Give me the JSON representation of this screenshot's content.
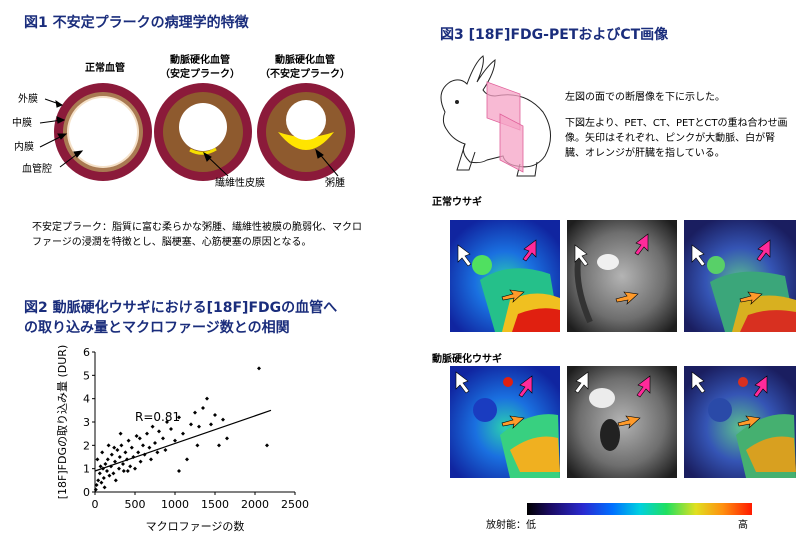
{
  "fig1": {
    "title": "図1 不安定プラークの病理学的特徴",
    "vessel_labels": [
      "正常血管",
      "動脈硬化血管",
      "（安定プラーク）",
      "動脈硬化血管",
      "（不安定プラーク）"
    ],
    "layer_labels": [
      "外膜",
      "中膜",
      "内膜",
      "血管腔"
    ],
    "callouts": [
      "繊維性皮膜",
      "粥腫"
    ],
    "description": "不安定プラーク：脂質に富む柔らかな粥腫、繊維性被膜の脆弱化、マクロファージの浸潤を特徴とし、脳梗塞、心筋梗塞の原因となる。"
  },
  "fig2": {
    "title_line1": "図2 動脈硬化ウサギにおける[18F]FDGの血管へ",
    "title_line2": "の取り込み量とマクロファージ数との相関"
  },
  "fig3": {
    "title": "図3 [18F]FDG-PETおよびCT画像",
    "caption1": "左図の面での断層像を下に示した。",
    "caption2": "下図左より、PET、CT、PETとCTの重ね合わせ画像。矢印はそれぞれ、ピンクが大動脈、白が腎臓、オレンジが肝臓を指している。",
    "row1_label": "正常ウサギ",
    "row2_label": "動脈硬化ウサギ",
    "colorbar_label_low": "放射能：低",
    "colorbar_label_high": "高"
  },
  "chart_data": {
    "type": "scatter",
    "xlabel": "マクロファージの数",
    "ylabel": "[18F]FDGの取り込み量 (DUR)",
    "xlim": [
      0,
      2500
    ],
    "ylim": [
      0,
      6
    ],
    "xticks": [
      0,
      500,
      1000,
      1500,
      2000,
      2500
    ],
    "yticks": [
      0,
      1,
      2,
      3,
      4,
      5,
      6
    ],
    "annotation": "R=0.81",
    "trendline": {
      "x": [
        0,
        2200
      ],
      "y": [
        0.9,
        3.5
      ]
    },
    "points": [
      [
        20,
        0.3
      ],
      [
        40,
        0.5
      ],
      [
        60,
        0.8
      ],
      [
        80,
        0.4
      ],
      [
        100,
        1.0
      ],
      [
        110,
        0.6
      ],
      [
        130,
        1.2
      ],
      [
        150,
        0.9
      ],
      [
        160,
        1.4
      ],
      [
        180,
        0.7
      ],
      [
        200,
        1.1
      ],
      [
        210,
        1.6
      ],
      [
        230,
        0.8
      ],
      [
        250,
        1.3
      ],
      [
        260,
        0.5
      ],
      [
        280,
        1.8
      ],
      [
        300,
        1.0
      ],
      [
        310,
        1.5
      ],
      [
        330,
        2.0
      ],
      [
        350,
        1.2
      ],
      [
        360,
        0.9
      ],
      [
        380,
        1.7
      ],
      [
        400,
        1.4
      ],
      [
        420,
        2.2
      ],
      [
        440,
        1.1
      ],
      [
        460,
        1.9
      ],
      [
        480,
        1.5
      ],
      [
        500,
        1.0
      ],
      [
        520,
        2.4
      ],
      [
        540,
        1.7
      ],
      [
        570,
        1.3
      ],
      [
        600,
        2.0
      ],
      [
        620,
        1.6
      ],
      [
        650,
        2.5
      ],
      [
        680,
        1.9
      ],
      [
        700,
        1.4
      ],
      [
        720,
        2.8
      ],
      [
        750,
        2.1
      ],
      [
        780,
        1.7
      ],
      [
        800,
        2.6
      ],
      [
        850,
        2.3
      ],
      [
        880,
        1.8
      ],
      [
        900,
        3.0
      ],
      [
        950,
        2.7
      ],
      [
        1000,
        2.2
      ],
      [
        1050,
        3.2
      ],
      [
        1100,
        2.5
      ],
      [
        1150,
        1.4
      ],
      [
        1200,
        2.9
      ],
      [
        1250,
        3.4
      ],
      [
        1300,
        2.8
      ],
      [
        1350,
        3.6
      ],
      [
        1400,
        4.0
      ],
      [
        1450,
        2.9
      ],
      [
        1500,
        3.3
      ],
      [
        1550,
        2.0
      ],
      [
        1600,
        3.1
      ],
      [
        1650,
        2.3
      ],
      [
        2050,
        5.3
      ],
      [
        2150,
        2.0
      ],
      [
        1050,
        0.9
      ],
      [
        1280,
        2.0
      ],
      [
        10,
        0.1
      ],
      [
        30,
        1.4
      ],
      [
        70,
        1.1
      ],
      [
        90,
        1.7
      ],
      [
        120,
        0.2
      ],
      [
        170,
        2.0
      ],
      [
        240,
        1.9
      ],
      [
        320,
        2.5
      ],
      [
        410,
        0.9
      ],
      [
        560,
        2.3
      ]
    ]
  }
}
